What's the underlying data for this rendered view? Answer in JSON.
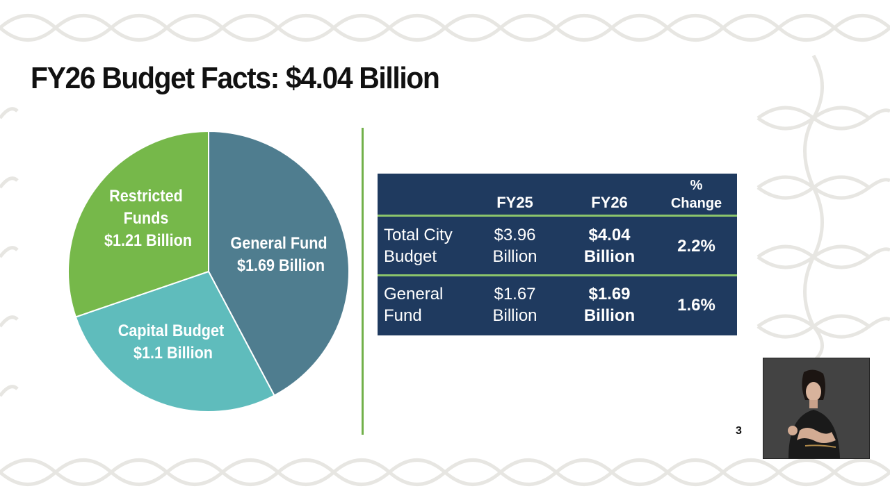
{
  "slide": {
    "title": "FY26 Budget Facts: $4.04 Billion",
    "page_number": "3"
  },
  "colors": {
    "general_fund": "#4f7d8f",
    "capital_budget": "#5fbcbc",
    "restricted_funds": "#76b84a",
    "table_bg": "#1f3a5f",
    "table_rule": "#8cc56b",
    "divider": "#72b04a"
  },
  "chart_data": {
    "type": "pie",
    "slices": [
      {
        "label_line1": "General Fund",
        "label_line2": "$1.69 Billion",
        "value": 1.69
      },
      {
        "label_line1": "Capital Budget",
        "label_line2": "$1.1 Billion",
        "value": 1.1
      },
      {
        "label_line1": "Restricted",
        "label_line2": "Funds",
        "label_line3": "$1.21 Billion",
        "value": 1.21
      }
    ]
  },
  "table": {
    "headers": [
      "FY25",
      "FY26",
      "%",
      "Change"
    ],
    "rows": [
      {
        "label_line1": "Total City",
        "label_line2": "Budget",
        "fy25_line1": "$3.96",
        "fy25_line2": "Billion",
        "fy26_line1": "$4.04",
        "fy26_line2": "Billion",
        "change": "2.2%"
      },
      {
        "label_line1": "General",
        "label_line2": "Fund",
        "fy25_line1": "$1.67",
        "fy25_line2": "Billion",
        "fy26_line1": "$1.69",
        "fy26_line2": "Billion",
        "change": "1.6%"
      }
    ]
  },
  "video_overlay": {
    "icon": "sign-language-interpreter-video"
  }
}
